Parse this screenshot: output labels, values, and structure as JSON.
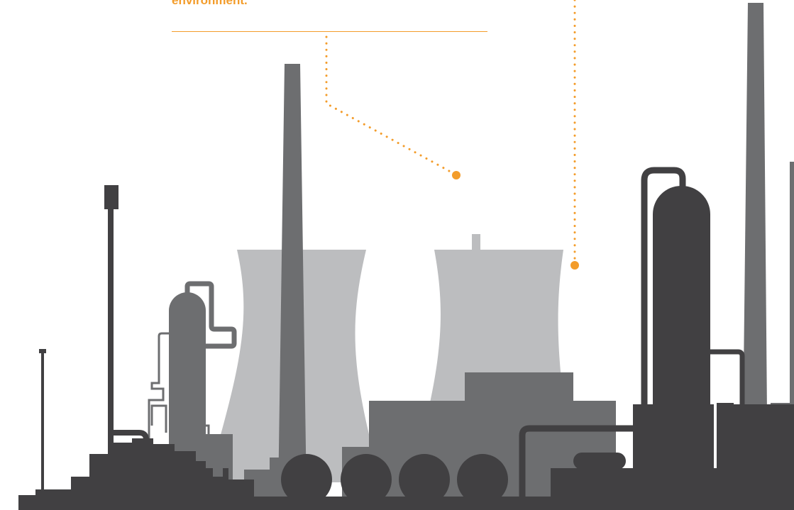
{
  "caption": {
    "text": "environment."
  },
  "colors": {
    "accent": "#f39c2a",
    "light_gray": "#bcbdbf",
    "mid_gray": "#6d6e70",
    "dark_gray": "#414042"
  },
  "icons": {
    "callout_markers": "circle",
    "illustration": "industrial-plant-silhouette"
  }
}
